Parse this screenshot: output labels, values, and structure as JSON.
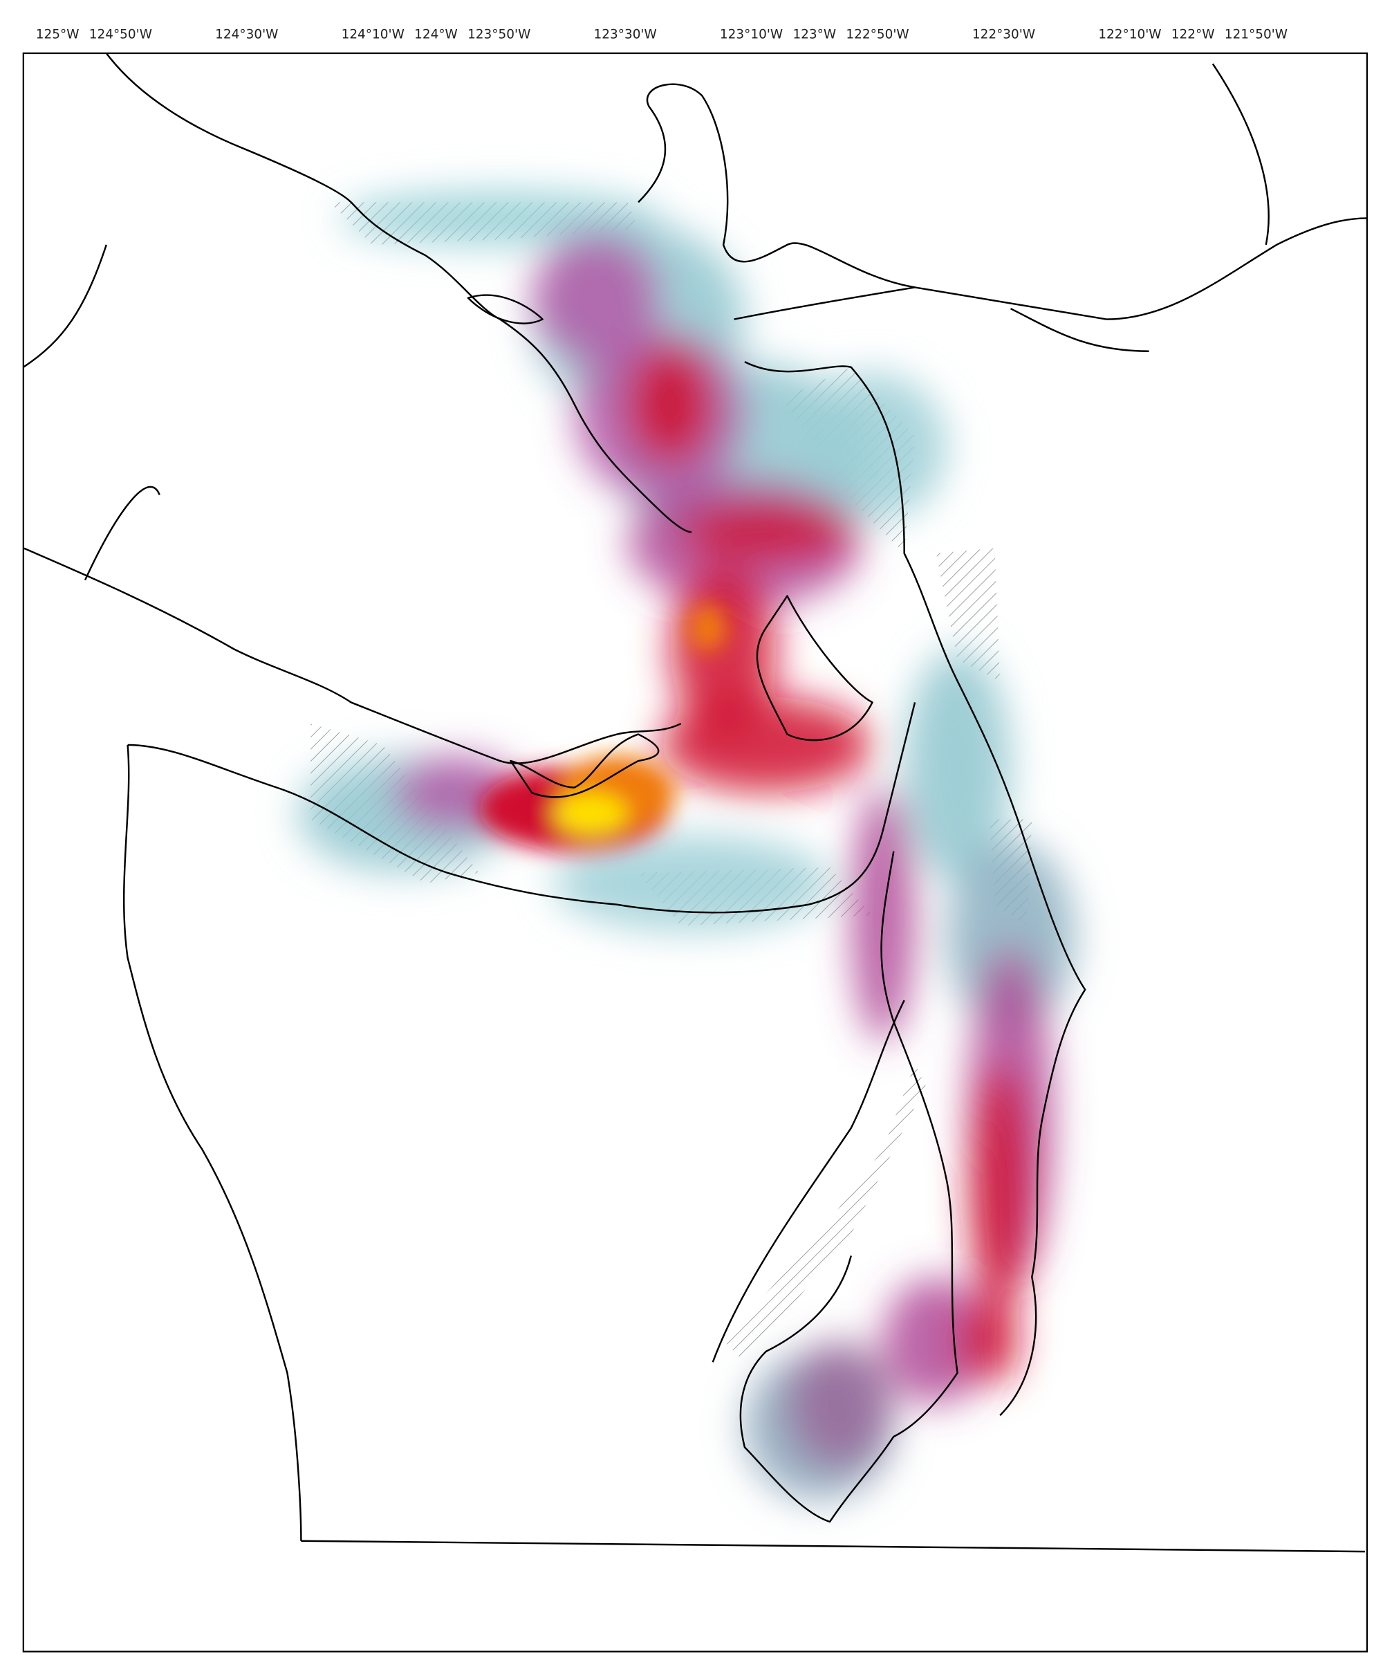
{
  "map": {
    "xlim": [
      -125.09,
      -121.54
    ],
    "lon_ticks": [
      {
        "value": -125,
        "label": "125°W"
      },
      {
        "value": -124.8333,
        "label": "124°50'W"
      },
      {
        "value": -124.5,
        "label": "124°30'W"
      },
      {
        "value": -124.1667,
        "label": "124°10'W"
      },
      {
        "value": -124,
        "label": "124°W"
      },
      {
        "value": -123.8333,
        "label": "123°50'W"
      },
      {
        "value": -123.5,
        "label": "123°30'W"
      },
      {
        "value": -123.1667,
        "label": "123°10'W"
      },
      {
        "value": -123,
        "label": "123°W"
      },
      {
        "value": -122.8333,
        "label": "122°50'W"
      },
      {
        "value": -122.5,
        "label": "122°30'W"
      },
      {
        "value": -122.1667,
        "label": "122°10'W"
      },
      {
        "value": -122,
        "label": "122°W"
      },
      {
        "value": -121.8333,
        "label": "121°50'W"
      }
    ]
  }
}
